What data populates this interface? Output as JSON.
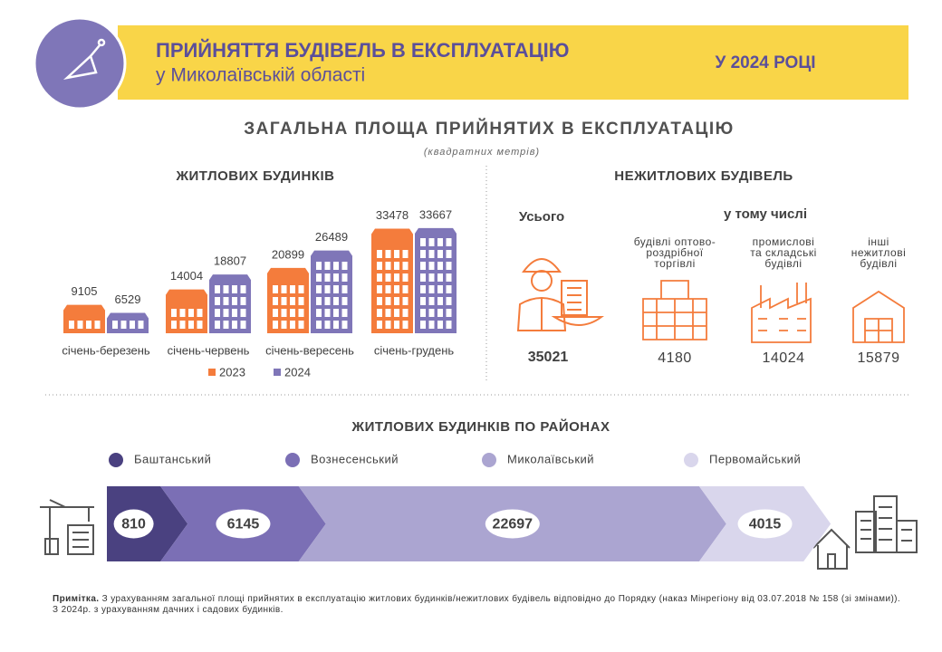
{
  "header": {
    "title": "ПРИЙНЯТТЯ БУДІВЕЛЬ В ЕКСПЛУАТАЦІЮ",
    "subtitle": "у Миколаївській області",
    "period": "У 2024 РОЦІ"
  },
  "section": {
    "title": "ЗАГАЛЬНА ПЛОЩА ПРИЙНЯТИХ В ЕКСПЛУАТАЦІЮ",
    "unit": "(квадратних метрів)"
  },
  "chart_data": [
    {
      "type": "bar",
      "title": "ЖИТЛОВИХ БУДИНКІВ",
      "categories": [
        "січень-березень",
        "січень-червень",
        "січень-вересень",
        "січень-грудень"
      ],
      "series": [
        {
          "name": "2023",
          "color": "#f47c3c",
          "values": [
            9105,
            14004,
            20899,
            33478
          ]
        },
        {
          "name": "2024",
          "color": "#7f76b8",
          "values": [
            6529,
            18807,
            26489,
            33667
          ]
        }
      ]
    },
    {
      "type": "arrow",
      "title": "ЖИТЛОВИХ БУДИНКІВ ПО РАЙОНАХ",
      "categories": [
        "Баштанський",
        "Вознесенський",
        "Миколаївський",
        "Первомайський"
      ],
      "values": [
        810,
        6145,
        22697,
        4015
      ],
      "colors": [
        "#4a4180",
        "#7b6fb5",
        "#aba5d1",
        "#d9d6ec"
      ]
    }
  ],
  "non_residential": {
    "title": "НЕЖИТЛОВИХ БУДІВЕЛЬ",
    "total_label": "Усього",
    "total": 35021,
    "subtitle": "у тому числі",
    "items": [
      {
        "label": [
          "будівлі оптово-",
          "роздрібної",
          "торгівлі"
        ],
        "value": 4180
      },
      {
        "label": [
          "промислові",
          "та складські",
          "будівлі"
        ],
        "value": 14024
      },
      {
        "label": [
          "інші",
          "нежитлові",
          "будівлі"
        ],
        "value": 15879
      }
    ]
  },
  "note": {
    "label": "Примітка.",
    "text": "З урахуванням загальної площі прийнятих в експлуатацію житлових будинків/нежитлових будівель відповідно до Порядку (наказ Мінрегіону від 03.07.2018 № 158 (зі змінами)).",
    "text2": "З 2024р. з урахуванням дачних і садових будинків."
  }
}
